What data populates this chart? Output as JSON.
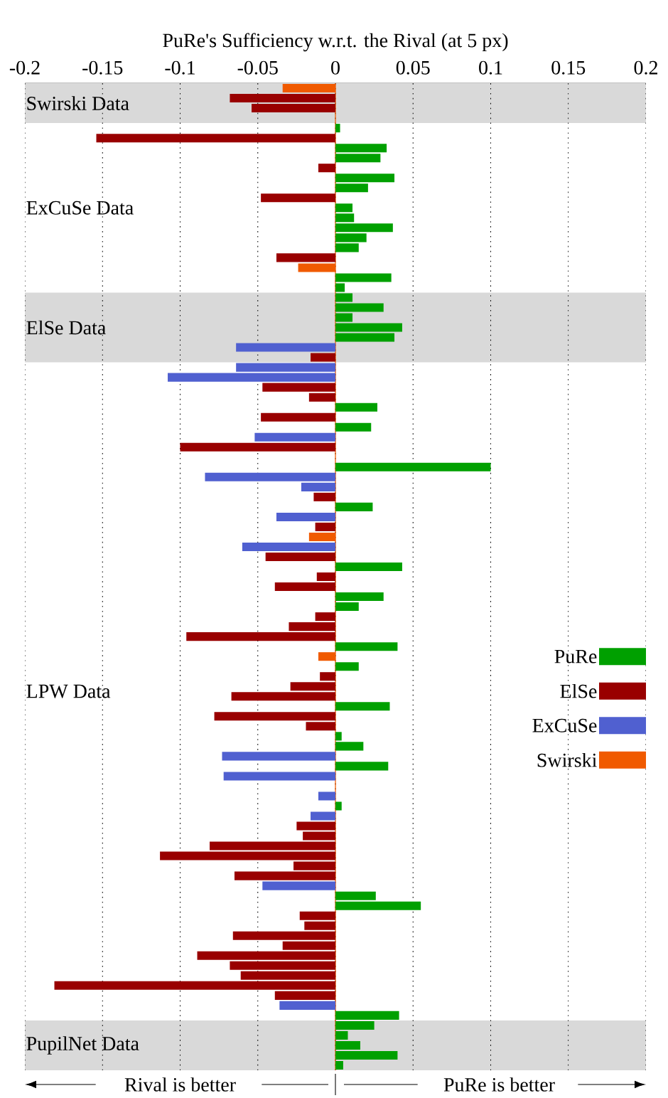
{
  "chart_data": {
    "type": "bar",
    "orientation": "horizontal",
    "xlabel": "PuRe's Sufficiency w.r.t. the Rival (at 5 px)",
    "categories": [
      null,
      null,
      null,
      null,
      null,
      null,
      null,
      null,
      null,
      null,
      null,
      null,
      null,
      null,
      null,
      null,
      null,
      null,
      null,
      null,
      null,
      null,
      null,
      null,
      null,
      null,
      null,
      null,
      null,
      null,
      null,
      null,
      null,
      null,
      null,
      null,
      null,
      null,
      null,
      null,
      null,
      null,
      null,
      null,
      null,
      null,
      null,
      null,
      null,
      null,
      null,
      null,
      null,
      null,
      null,
      null,
      null,
      null,
      null,
      null,
      null,
      null,
      null,
      null,
      null,
      null,
      null,
      null,
      null,
      null,
      null,
      null,
      null,
      null,
      null,
      null,
      null,
      null,
      null,
      null,
      null,
      null,
      null,
      null,
      null,
      null,
      null,
      null,
      null,
      null,
      null,
      null,
      null,
      null,
      null,
      null,
      null,
      null,
      null
    ],
    "series": [
      {
        "name": "PuRe",
        "color": "#00a000",
        "values": [
          null,
          null,
          null,
          null,
          0.003,
          null,
          0.033,
          0.029,
          null,
          0.038,
          0.021,
          null,
          0.011,
          0.012,
          0.037,
          0.02,
          0.015,
          null,
          null,
          0.036,
          0.006,
          0.011,
          0.031,
          0.011,
          0.043,
          0.038,
          null,
          null,
          null,
          null,
          null,
          null,
          0.027,
          null,
          0.023,
          null,
          null,
          null,
          0.1,
          null,
          null,
          null,
          0.024,
          null,
          null,
          null,
          null,
          null,
          0.043,
          null,
          null,
          0.031,
          0.015,
          null,
          null,
          null,
          0.04,
          null,
          0.015,
          null,
          null,
          null,
          0.035,
          null,
          null,
          0.004,
          0.018,
          null,
          0.034,
          null,
          null,
          null,
          0.004,
          null,
          null,
          null,
          null,
          null,
          null,
          null,
          null,
          0.026,
          0.055,
          null,
          null,
          null,
          null,
          null,
          null,
          null,
          null,
          null,
          null,
          0.041,
          0.025,
          0.008,
          0.016,
          0.04,
          0.005
        ]
      },
      {
        "name": "ElSe",
        "color": "#990000",
        "values": [
          null,
          -0.068,
          -0.054,
          null,
          null,
          -0.154,
          null,
          null,
          -0.011,
          null,
          null,
          -0.048,
          null,
          null,
          null,
          null,
          null,
          -0.038,
          null,
          null,
          null,
          null,
          null,
          null,
          null,
          null,
          null,
          -0.016,
          null,
          null,
          -0.047,
          -0.017,
          null,
          -0.048,
          null,
          null,
          -0.1,
          null,
          null,
          null,
          null,
          -0.014,
          null,
          null,
          -0.013,
          null,
          null,
          -0.045,
          null,
          -0.012,
          -0.039,
          null,
          null,
          -0.013,
          -0.03,
          -0.096,
          null,
          null,
          null,
          -0.01,
          -0.029,
          -0.067,
          null,
          -0.078,
          -0.019,
          null,
          null,
          null,
          null,
          null,
          null,
          null,
          null,
          null,
          -0.025,
          -0.021,
          -0.081,
          -0.113,
          -0.027,
          -0.065,
          null,
          null,
          null,
          -0.023,
          -0.02,
          -0.066,
          -0.034,
          -0.089,
          -0.068,
          -0.061,
          -0.181,
          -0.039,
          null,
          null,
          null,
          null,
          null,
          null,
          null
        ]
      },
      {
        "name": "ExCuSe",
        "color": "#5060d0",
        "values": [
          null,
          null,
          null,
          null,
          null,
          null,
          null,
          null,
          null,
          null,
          null,
          null,
          null,
          null,
          null,
          null,
          null,
          null,
          null,
          null,
          null,
          null,
          null,
          null,
          null,
          null,
          -0.064,
          null,
          -0.064,
          -0.108,
          null,
          null,
          null,
          null,
          null,
          -0.052,
          null,
          null,
          null,
          -0.084,
          -0.022,
          null,
          null,
          -0.038,
          null,
          null,
          -0.06,
          null,
          null,
          null,
          null,
          null,
          null,
          null,
          null,
          null,
          null,
          null,
          null,
          null,
          null,
          null,
          null,
          null,
          null,
          null,
          null,
          -0.073,
          null,
          -0.072,
          null,
          -0.011,
          null,
          -0.016,
          null,
          null,
          null,
          null,
          null,
          null,
          -0.047,
          null,
          null,
          null,
          null,
          null,
          null,
          null,
          null,
          null,
          null,
          null,
          -0.036,
          null,
          null,
          null,
          null,
          null,
          null
        ]
      },
      {
        "name": "Swirski",
        "color": "#f05a00",
        "values": [
          -0.034,
          null,
          null,
          null,
          null,
          null,
          null,
          null,
          null,
          null,
          null,
          null,
          null,
          null,
          null,
          null,
          null,
          null,
          -0.024,
          null,
          null,
          null,
          null,
          null,
          null,
          null,
          null,
          null,
          null,
          null,
          null,
          null,
          null,
          null,
          null,
          null,
          null,
          null,
          null,
          null,
          null,
          null,
          null,
          null,
          null,
          -0.017,
          null,
          null,
          null,
          null,
          null,
          null,
          null,
          null,
          null,
          null,
          null,
          -0.011,
          null,
          null,
          null,
          null,
          null,
          null,
          null,
          null,
          null,
          null,
          null,
          null,
          null,
          null,
          null,
          null,
          null,
          null,
          null,
          null,
          null,
          null,
          null,
          null,
          null,
          null,
          null,
          null,
          null,
          null,
          null,
          null,
          null,
          null,
          null,
          null,
          null,
          null,
          null,
          null,
          null
        ]
      }
    ],
    "xlim": [
      -0.2,
      0.2
    ],
    "xticks": [
      -0.2,
      -0.15,
      -0.1,
      -0.05,
      0,
      0.05,
      0.1,
      0.15,
      0.2
    ],
    "grid": "x",
    "legend": "right",
    "ref_lines": [
      {
        "axis": "x",
        "value": 0,
        "color": "#f05a00"
      }
    ],
    "annotations": [
      "Swirski Data",
      "ExCuSe Data",
      "ElSe Data",
      "LPW Data",
      "PupilNet Data",
      "Rival is better",
      "PuRe is better"
    ]
  }
}
